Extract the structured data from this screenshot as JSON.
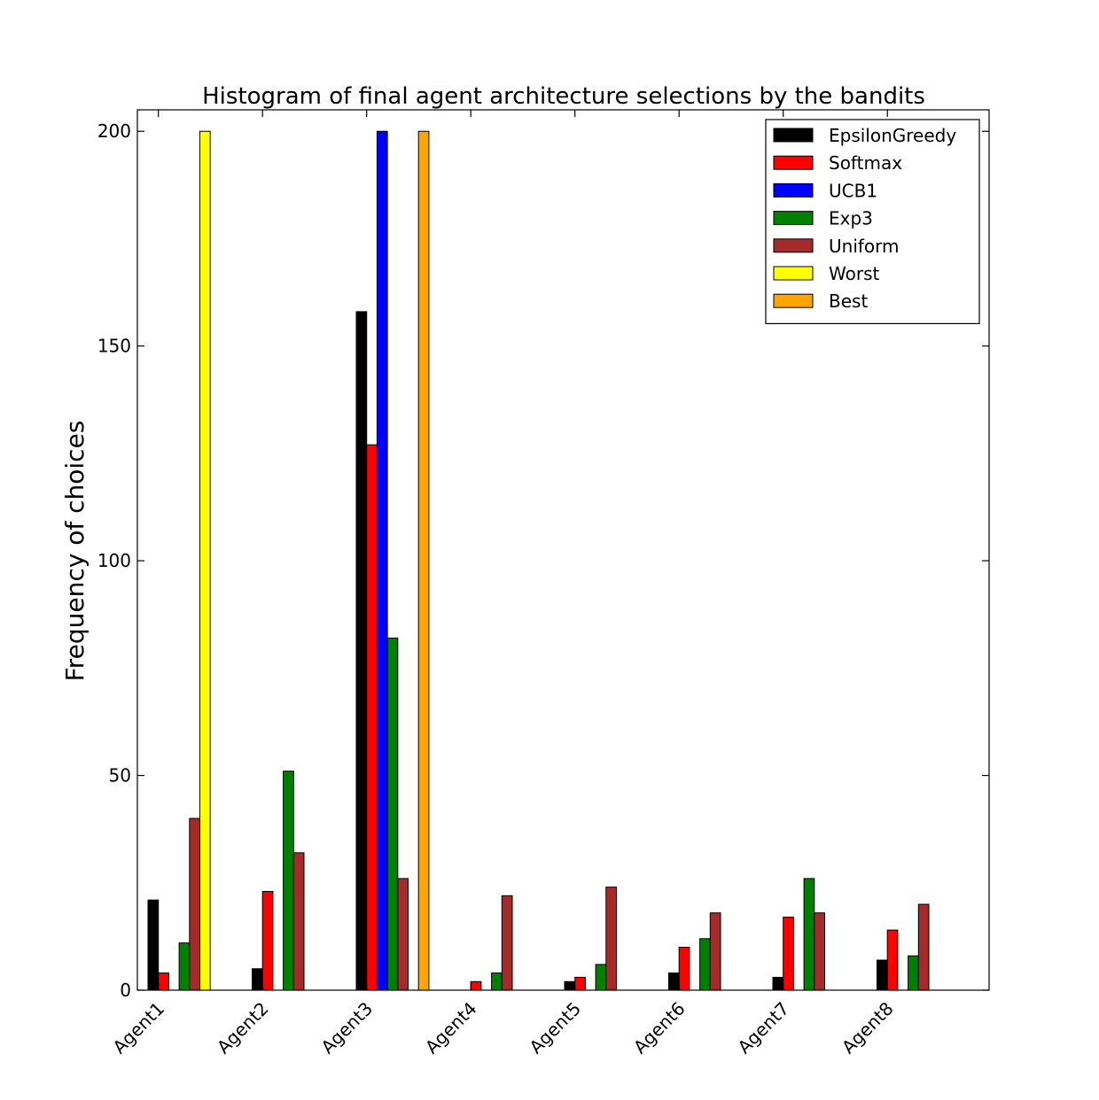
{
  "chart_data": {
    "type": "bar",
    "title": "Histogram of final agent architecture selections by the bandits",
    "xlabel": "",
    "ylabel": "Frequency of choices",
    "ylim": [
      0,
      205
    ],
    "yticks": [
      0,
      50,
      100,
      150,
      200
    ],
    "categories": [
      "Agent1",
      "Agent2",
      "Agent3",
      "Agent4",
      "Agent5",
      "Agent6",
      "Agent7",
      "Agent8"
    ],
    "series": [
      {
        "name": "EpsilonGreedy",
        "color": "#000000",
        "values": [
          21,
          5,
          158,
          0,
          2,
          4,
          3,
          7
        ]
      },
      {
        "name": "Softmax",
        "color": "#ff0000",
        "values": [
          4,
          23,
          127,
          2,
          3,
          10,
          17,
          14
        ]
      },
      {
        "name": "UCB1",
        "color": "#0000ff",
        "values": [
          0,
          0,
          200,
          0,
          0,
          0,
          0,
          0
        ]
      },
      {
        "name": "Exp3",
        "color": "#008000",
        "values": [
          11,
          51,
          82,
          4,
          6,
          12,
          26,
          8
        ]
      },
      {
        "name": "Uniform",
        "color": "#a52a2a",
        "values": [
          40,
          32,
          26,
          22,
          24,
          18,
          18,
          20
        ]
      },
      {
        "name": "Worst",
        "color": "#ffff00",
        "values": [
          200,
          0,
          0,
          0,
          0,
          0,
          0,
          0
        ]
      },
      {
        "name": "Best",
        "color": "#ffa500",
        "values": [
          0,
          0,
          200,
          0,
          0,
          0,
          0,
          0
        ]
      }
    ],
    "legend_position": "top-right"
  }
}
